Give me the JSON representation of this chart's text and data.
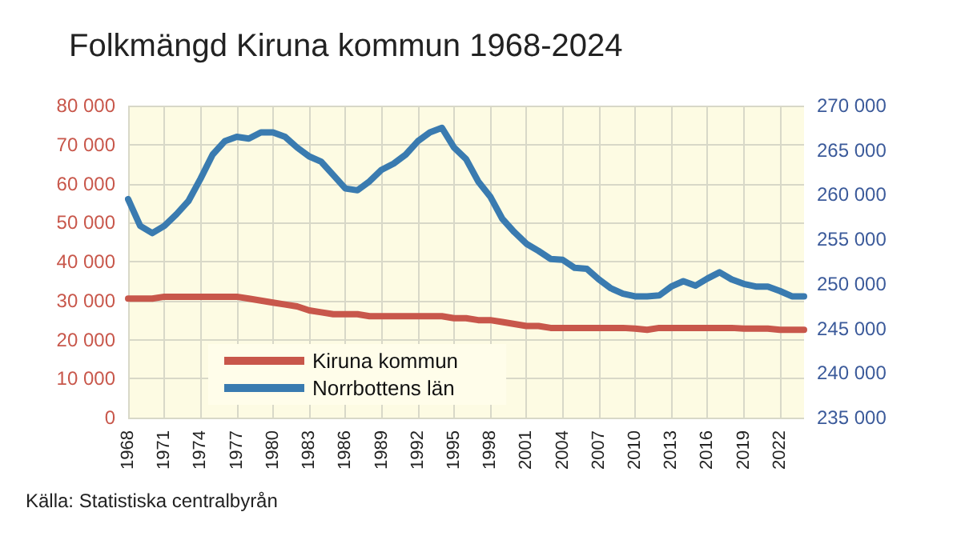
{
  "chart_data": {
    "type": "line",
    "title": "Folkmängd Kiruna kommun 1968-2024",
    "x": [
      1968,
      1969,
      1970,
      1971,
      1972,
      1973,
      1974,
      1975,
      1976,
      1977,
      1978,
      1979,
      1980,
      1981,
      1982,
      1983,
      1984,
      1985,
      1986,
      1987,
      1988,
      1989,
      1990,
      1991,
      1992,
      1993,
      1994,
      1995,
      1996,
      1997,
      1998,
      1999,
      2000,
      2001,
      2002,
      2003,
      2004,
      2005,
      2006,
      2007,
      2008,
      2009,
      2010,
      2011,
      2012,
      2013,
      2014,
      2015,
      2016,
      2017,
      2018,
      2019,
      2020,
      2021,
      2022,
      2023,
      2024
    ],
    "series": [
      {
        "name": "Kiruna kommun",
        "color": "#c8574b",
        "values": [
          30500,
          30500,
          30500,
          31000,
          31000,
          31000,
          31000,
          31000,
          31000,
          31000,
          30500,
          30000,
          29500,
          29000,
          28500,
          27500,
          27000,
          26500,
          26500,
          26500,
          26000,
          26000,
          26000,
          26000,
          26000,
          26000,
          26000,
          25500,
          25500,
          25000,
          25000,
          24500,
          24000,
          23500,
          23500,
          23000,
          23000,
          23000,
          23000,
          23000,
          23000,
          23000,
          22800,
          22500,
          23000,
          23000,
          23000,
          23000,
          23000,
          23000,
          23000,
          22800,
          22800,
          22800,
          22500,
          22500,
          22500
        ]
      },
      {
        "name": "Norrbottens län",
        "color": "#3a7bb0",
        "axis": "y2",
        "values": [
          259500,
          256500,
          255700,
          256500,
          257800,
          259300,
          261800,
          264500,
          266000,
          266500,
          266300,
          267000,
          267000,
          266500,
          265300,
          264300,
          263700,
          262200,
          260700,
          260500,
          261500,
          262800,
          263500,
          264500,
          266000,
          267000,
          267500,
          265300,
          264000,
          261500,
          259800,
          257300,
          255800,
          254500,
          253700,
          252800,
          252700,
          251800,
          251700,
          250500,
          249500,
          248900,
          248600,
          248600,
          248700,
          249700,
          250300,
          249800,
          250600,
          251300,
          250500,
          250000,
          249700,
          249700,
          249200,
          248600,
          248600
        ]
      }
    ],
    "xlim": [
      1968,
      2024
    ],
    "xticks": [
      1968,
      1971,
      1974,
      1977,
      1980,
      1983,
      1986,
      1989,
      1992,
      1995,
      1998,
      2001,
      2004,
      2007,
      2010,
      2013,
      2016,
      2019,
      2022
    ],
    "ylim": [
      0,
      80000
    ],
    "yticks": [
      {
        "value": 0,
        "label": "0"
      },
      {
        "value": 10000,
        "label": "10 000"
      },
      {
        "value": 20000,
        "label": "20 000"
      },
      {
        "value": 30000,
        "label": "30 000"
      },
      {
        "value": 40000,
        "label": "40 000"
      },
      {
        "value": 50000,
        "label": "50 000"
      },
      {
        "value": 60000,
        "label": "60 000"
      },
      {
        "value": 70000,
        "label": "70 000"
      },
      {
        "value": 80000,
        "label": "80 000"
      }
    ],
    "y2lim": [
      235000,
      270000
    ],
    "y2ticks": [
      {
        "value": 235000,
        "label": "235 000"
      },
      {
        "value": 240000,
        "label": "240 000"
      },
      {
        "value": 245000,
        "label": "245 000"
      },
      {
        "value": 250000,
        "label": "250 000"
      },
      {
        "value": 255000,
        "label": "255 000"
      },
      {
        "value": 260000,
        "label": "260 000"
      },
      {
        "value": 265000,
        "label": "265 000"
      },
      {
        "value": 270000,
        "label": "270 000"
      }
    ],
    "grid": true,
    "legend": "bottom left",
    "marker": "none",
    "line_style": "solid",
    "annotations": [
      "Källa: Statistiska centralbyrån"
    ]
  }
}
